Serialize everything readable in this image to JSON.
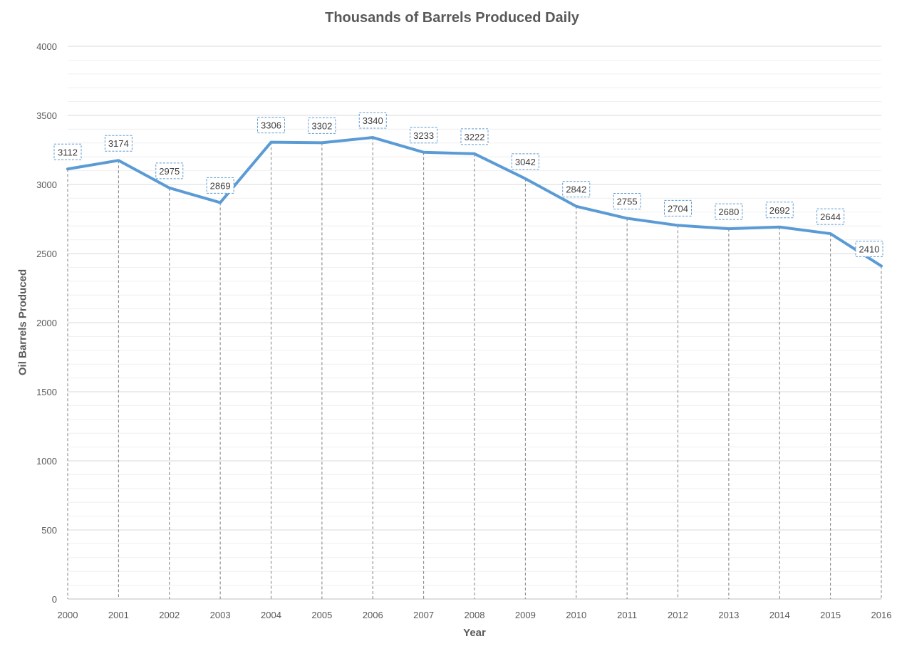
{
  "chart_data": {
    "type": "line",
    "title": "Thousands of Barrels Produced Daily",
    "xlabel": "Year",
    "ylabel": "Oil Barrels Produced",
    "x": [
      "2000",
      "2001",
      "2002",
      "2003",
      "2004",
      "2005",
      "2006",
      "2007",
      "2008",
      "2009",
      "2010",
      "2011",
      "2012",
      "2013",
      "2014",
      "2015",
      "2016"
    ],
    "series": [
      {
        "values": [
          3112,
          3174,
          2975,
          2869,
          3306,
          3302,
          3340,
          3233,
          3222,
          3042,
          2842,
          2755,
          2704,
          2680,
          2692,
          2644,
          2410
        ]
      }
    ],
    "ylim": [
      0,
      4000
    ],
    "y_ticks": [
      0,
      500,
      1000,
      1500,
      2000,
      2500,
      3000,
      3500,
      4000
    ],
    "grid": true,
    "data_labels": true,
    "drop_lines": true,
    "legend": "none",
    "colors": {
      "line": "#5b9bd5",
      "grid_major": "#d9d9d9",
      "grid_minor": "#efefef",
      "text": "#595959",
      "drop_line": "#7f7f7f"
    }
  }
}
